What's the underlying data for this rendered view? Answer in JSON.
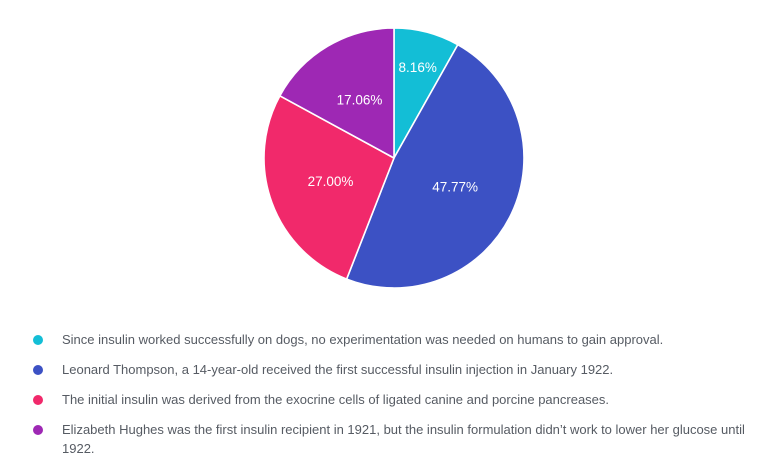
{
  "chart_data": {
    "type": "pie",
    "title": "",
    "start_angle_deg": 0,
    "direction": "clockwise",
    "slice_border_color": "#ffffff",
    "percent_label_color": "#ffffff",
    "legend_position": "bottom-left",
    "legend_text_color": "#565b63",
    "background_color": "#ffffff",
    "slices": [
      {
        "label": "Since insulin worked successfully on dogs, no experimentation was needed on humans to gain approval.",
        "value": 8.16,
        "percent_label": "8.16%",
        "color": "#13bed6"
      },
      {
        "label": "Leonard Thompson, a 14-year-old received the first successful insulin injection in January 1922.",
        "value": 47.77,
        "percent_label": "47.77%",
        "color": "#3c51c4"
      },
      {
        "label": "The initial insulin was derived from the exocrine cells of ligated canine and porcine pancreases.",
        "value": 27.0,
        "percent_label": "27.00%",
        "color": "#f1296b"
      },
      {
        "label": "Elizabeth Hughes was the first insulin recipient in 1921, but the insulin formulation didn’t work to lower her glucose until 1922.",
        "value": 17.06,
        "percent_label": "17.06%",
        "color": "#9e28b4"
      }
    ]
  }
}
